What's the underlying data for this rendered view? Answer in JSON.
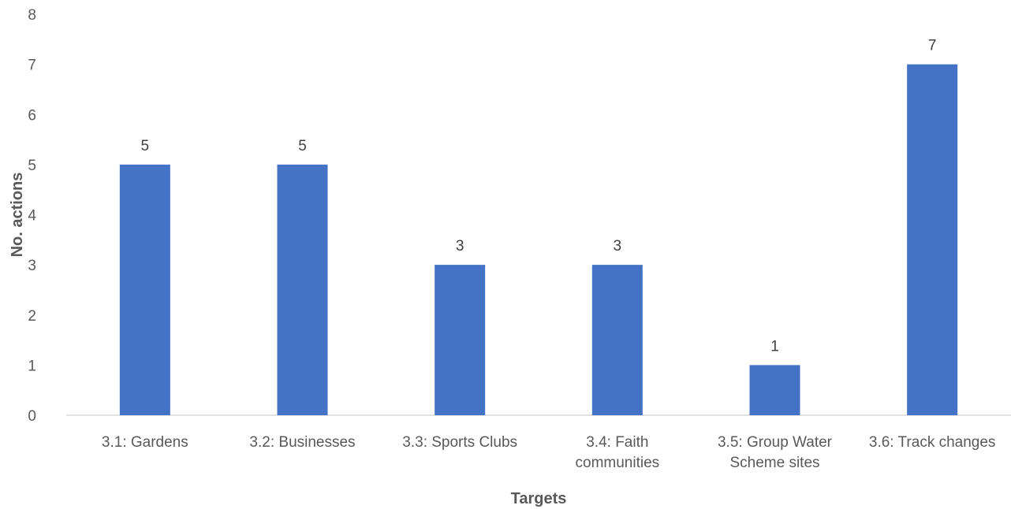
{
  "chart_data": {
    "type": "bar",
    "title": "",
    "xlabel": "Targets",
    "ylabel": "No. actions",
    "categories": [
      [
        "3.1: Gardens"
      ],
      [
        "3.2: Businesses"
      ],
      [
        "3.3: Sports Clubs"
      ],
      [
        "3.4: Faith",
        "communities"
      ],
      [
        "3.5: Group Water",
        "Scheme sites"
      ],
      [
        "3.6: Track changes"
      ]
    ],
    "values": [
      5,
      5,
      3,
      3,
      1,
      7
    ],
    "ylim": [
      0,
      8
    ],
    "yticks": [
      0,
      1,
      2,
      3,
      4,
      5,
      6,
      7,
      8
    ],
    "grid": false,
    "legend": "none",
    "data_labels": true,
    "colors": {
      "bar": "#4472c4"
    }
  }
}
